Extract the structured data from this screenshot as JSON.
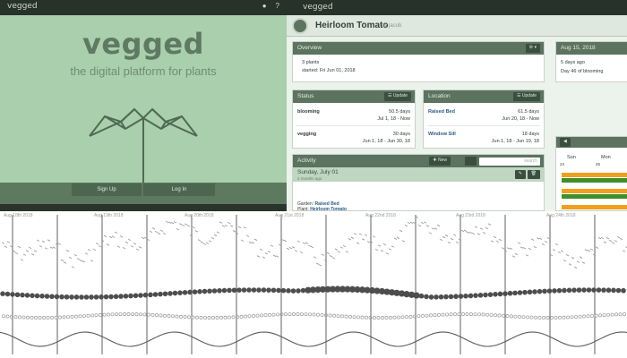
{
  "landing": {
    "logo": "vegged",
    "title": "vegged",
    "subtitle": "the digital platform for plants",
    "signup_label": "Sign Up",
    "login_label": "Log In",
    "icons": [
      "globe-icon",
      "help-icon"
    ],
    "top_icon_glyphs": [
      "●",
      "?"
    ]
  },
  "dashboard": {
    "logo": "vegged",
    "plant_name": "Heirloom Tomato",
    "plant_owner": "by jacob",
    "overview": {
      "title": "Overview",
      "gear": "⚙ ▾",
      "plants": "3 plants",
      "started": "started: Fri Jun 01, 2018"
    },
    "date_panel": {
      "title": "Aug 15, 2018",
      "ago": "5 days ago",
      "day": "Day 46 of blooming"
    },
    "status": {
      "title": "Status",
      "update": "☰ Update",
      "rows": [
        {
          "name": "blooming",
          "duration": "50.5 days",
          "range": "Jul 1, 18 - Now"
        },
        {
          "name": "vegging",
          "duration": "30 days",
          "range": "Jun 1, 18 - Jun 30, 18"
        }
      ]
    },
    "location": {
      "title": "Location",
      "update": "☰ Update",
      "rows": [
        {
          "name": "Raised Bed",
          "duration": "61.5 days",
          "range": "Jun 20, 18 - Now"
        },
        {
          "name": "Window Sill",
          "duration": "18 days",
          "range": "Jun 1, 18 - Jun 19, 18"
        }
      ]
    },
    "activity": {
      "title": "Activity",
      "new_label": "✚ New",
      "search_placeholder": "search",
      "day_title": "Sunday, July 01",
      "day_ago": "2 months ago",
      "garden_label": "Garden:",
      "garden_value": "Raised Bed",
      "plant_label": "Plant:",
      "plant_value": "Heirloom Tomato"
    },
    "calendar": {
      "back": "◀",
      "day1": "Sun",
      "day2": "Mon",
      "num1": "24",
      "num2": "25"
    },
    "colors": {
      "orange": "#f0a01a",
      "green": "#3f8f2a",
      "header": "#5c735f"
    }
  },
  "timeline": {
    "date_labels": [
      "Aug 18th 2018",
      "Aug 19th 2018",
      "Aug 20th 2018",
      "Aug 21st 2018",
      "Aug 22nd 2018",
      "Aug 23rd 2018",
      "Aug 24th 2018"
    ]
  }
}
